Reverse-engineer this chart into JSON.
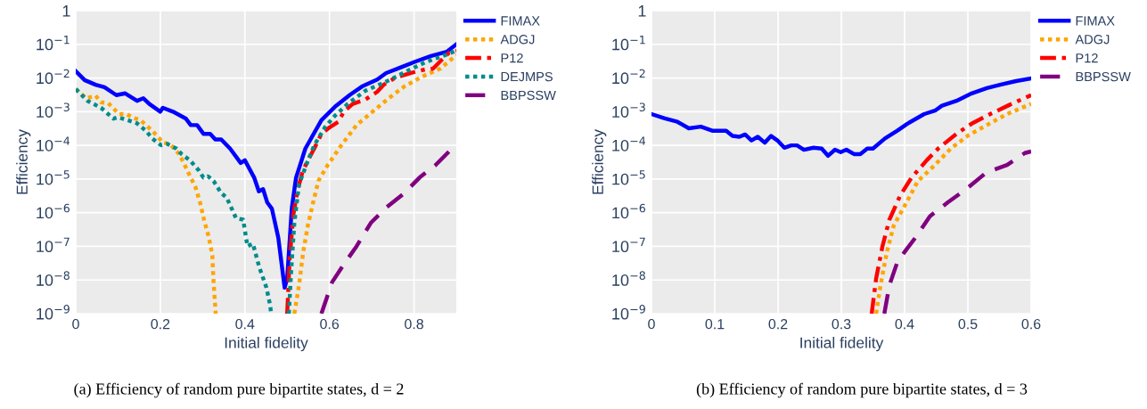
{
  "chart_data": [
    {
      "type": "line",
      "xlabel": "Initial fidelity",
      "ylabel": "Efficiency",
      "log": "y",
      "grid": true,
      "legend": "top right",
      "xlim": [
        0,
        0.9
      ],
      "xticks": [
        0,
        0.2,
        0.4,
        0.6,
        0.8
      ],
      "ylim": [
        1e-09,
        1
      ],
      "yticks": [
        {
          "value": 1e-09,
          "label": "10$^{−9}$"
        },
        {
          "value": 1e-08,
          "label": "10$^{−8}$"
        },
        {
          "value": 1e-07,
          "label": "10$^{−7}$"
        },
        {
          "value": 1e-06,
          "label": "10$^{−6}$"
        },
        {
          "value": 1e-05,
          "label": "10$^{−5}$"
        },
        {
          "value": 0.0001,
          "label": "10$^{−4}$"
        },
        {
          "value": 0.001,
          "label": "10$^{−3}$"
        },
        {
          "value": 0.01,
          "label": "10$^{−2}$"
        },
        {
          "value": 0.1,
          "label": "10$^{−1}$"
        },
        {
          "value": 1,
          "label": "1"
        }
      ],
      "annotations": [
        "(a) Efficiency of random pure bipartite states, d = 2"
      ],
      "series": [
        {
          "name": "FIMAX",
          "color": "#0000ff",
          "line_style": "solid",
          "x": [
            0,
            0.021,
            0.047,
            0.068,
            0.096,
            0.117,
            0.145,
            0.16,
            0.174,
            0.2,
            0.206,
            0.23,
            0.26,
            0.272,
            0.287,
            0.302,
            0.318,
            0.33,
            0.344,
            0.365,
            0.39,
            0.4,
            0.422,
            0.433,
            0.443,
            0.453,
            0.464,
            0.479,
            0.494,
            0.5,
            0.511,
            0.521,
            0.543,
            0.581,
            0.613,
            0.649,
            0.677,
            0.713,
            0.734,
            0.77,
            0.804,
            0.84,
            0.877,
            0.9
          ],
          "values": [
            0.016,
            0.0087,
            0.0063,
            0.0053,
            0.0031,
            0.0035,
            0.0021,
            0.0025,
            0.0017,
            0.001,
            0.0013,
            0.001,
            0.00063,
            0.0004,
            0.0004,
            0.00022,
            0.00022,
            0.00015,
            0.00015,
            8e-05,
            3e-05,
            3.6e-05,
            1.1e-05,
            4.3e-06,
            5e-06,
            2e-06,
            1.3e-06,
            1.8e-07,
            5.9e-09,
            1.1e-08,
            1.4e-06,
            1.1e-05,
            8e-05,
            0.00056,
            0.0014,
            0.0032,
            0.0056,
            0.009,
            0.014,
            0.021,
            0.031,
            0.045,
            0.06,
            0.1
          ]
        },
        {
          "name": "ADGJ",
          "color": "#ffa500",
          "line_style": "dotted",
          "x": [
            0,
            0.025,
            0.047,
            0.06,
            0.077,
            0.102,
            0.12,
            0.134,
            0.153,
            0.166,
            0.181,
            0.191,
            0.206,
            0.223,
            0.245,
            0.262,
            0.272,
            0.283,
            0.294,
            0.304,
            0.315,
            0.323,
            0.326,
            0.331,
            0.42,
            0.517,
            0.528,
            0.538,
            0.549,
            0.56,
            0.574,
            0.596,
            0.628,
            0.664,
            0.706,
            0.74,
            0.777,
            0.819,
            0.862,
            0.9
          ],
          "values": [
            0.0047,
            0.0025,
            0.003,
            0.0019,
            0.0018,
            0.00085,
            0.00085,
            0.00067,
            0.00056,
            0.0004,
            0.00027,
            0.0002,
            0.00012,
            0.00011,
            5.4e-05,
            2e-05,
            1.1e-05,
            5.8e-06,
            2e-06,
            5.7e-07,
            1.8e-07,
            5.4e-08,
            8.5e-09,
            1e-09,
            null,
            1e-09,
            7e-09,
            6.8e-08,
            4.2e-07,
            1.7e-06,
            8.9e-06,
            2.6e-05,
            0.0001,
            0.0004,
            0.0011,
            0.0025,
            0.0056,
            0.011,
            0.019,
            0.048
          ]
        },
        {
          "name": "P12",
          "color": "#ff0000",
          "line_style": "dashdot",
          "x": [
            0.5,
            0.506,
            0.515,
            0.525,
            0.536,
            0.547,
            0.564,
            0.581,
            0.6,
            0.621,
            0.634,
            0.655,
            0.685,
            0.713,
            0.728,
            0.755,
            0.791,
            0.826,
            0.845,
            0.866,
            0.883,
            0.9
          ],
          "values": [
            1e-09,
            4.5e-08,
            9.3e-07,
            4.8e-06,
            1.6e-05,
            3.2e-05,
            8e-05,
            0.00022,
            0.00034,
            0.0005,
            0.001,
            0.0017,
            0.0023,
            0.0039,
            0.0063,
            0.01,
            0.014,
            0.018,
            0.019,
            0.035,
            0.057,
            0.065
          ]
        },
        {
          "name": "DEJMPS",
          "color": "#008b8b",
          "line_style": "dotted",
          "x": [
            0,
            0.028,
            0.06,
            0.089,
            0.1,
            0.123,
            0.145,
            0.166,
            0.181,
            0.202,
            0.217,
            0.238,
            0.251,
            0.27,
            0.291,
            0.302,
            0.313,
            0.326,
            0.344,
            0.357,
            0.379,
            0.396,
            0.406,
            0.419,
            0.434,
            0.451,
            0.46,
            0.462,
            0.48,
            0.504,
            0.51,
            0.517,
            0.528,
            0.547,
            0.564,
            0.589,
            0.613,
            0.643,
            0.685,
            0.728,
            0.755,
            0.791,
            0.826,
            0.868,
            0.9
          ],
          "values": [
            0.0047,
            0.0021,
            0.0013,
            0.00062,
            0.00068,
            0.00056,
            0.00045,
            0.00027,
            0.00016,
            0.0001,
            0.00011,
            8e-05,
            5.4e-05,
            3.6e-05,
            1.8e-05,
            1.1e-05,
            1.2e-05,
            8.7e-06,
            3.8e-06,
            2.8e-06,
            6.9e-07,
            6.2e-07,
            1e-07,
            1.2e-07,
            2.4e-08,
            5.9e-09,
            1.7e-09,
            1e-09,
            null,
            1e-09,
            2.4e-08,
            5e-07,
            6.9e-06,
            3e-05,
            0.0001,
            0.00034,
            0.00076,
            0.0017,
            0.0042,
            0.0072,
            0.0105,
            0.018,
            0.029,
            0.045,
            0.065
          ]
        },
        {
          "name": "BBPSSW",
          "color": "#800080",
          "line_style": "dashed",
          "x": [
            0.581,
            0.606,
            0.634,
            0.664,
            0.698,
            0.734,
            0.777,
            0.813,
            0.851,
            0.883,
            0.9
          ],
          "values": [
            1e-09,
            8.5e-09,
            2.9e-08,
            1e-07,
            5e-07,
            1.4e-06,
            3.8e-06,
            1.1e-05,
            2.6e-05,
            6.6e-05,
            8e-05
          ]
        }
      ]
    },
    {
      "type": "line",
      "xlabel": "Initial fidelity",
      "ylabel": "Efficiency",
      "log": "y",
      "grid": true,
      "legend": "top right",
      "xlim": [
        0,
        0.6
      ],
      "xticks": [
        0,
        0.1,
        0.2,
        0.3,
        0.4,
        0.5,
        0.6
      ],
      "ylim": [
        1e-09,
        1
      ],
      "yticks": [
        {
          "value": 1e-09,
          "label": "10$^{−9}$"
        },
        {
          "value": 1e-08,
          "label": "10$^{−8}$"
        },
        {
          "value": 1e-07,
          "label": "10$^{−7}$"
        },
        {
          "value": 1e-06,
          "label": "10$^{−6}$"
        },
        {
          "value": 1e-05,
          "label": "10$^{−5}$"
        },
        {
          "value": 0.0001,
          "label": "10$^{−4}$"
        },
        {
          "value": 0.001,
          "label": "10$^{−3}$"
        },
        {
          "value": 0.01,
          "label": "10$^{−2}$"
        },
        {
          "value": 0.1,
          "label": "10$^{−1}$"
        },
        {
          "value": 1,
          "label": "1"
        }
      ],
      "annotations": [
        "(b) Efficiency of random pure bipartite states, d = 3"
      ],
      "series": [
        {
          "name": "FIMAX",
          "color": "#0000ff",
          "line_style": "solid",
          "x": [
            0,
            0.021,
            0.041,
            0.059,
            0.078,
            0.097,
            0.118,
            0.128,
            0.139,
            0.148,
            0.158,
            0.168,
            0.179,
            0.189,
            0.199,
            0.21,
            0.221,
            0.23,
            0.241,
            0.256,
            0.269,
            0.279,
            0.29,
            0.299,
            0.308,
            0.32,
            0.33,
            0.341,
            0.35,
            0.369,
            0.388,
            0.407,
            0.431,
            0.449,
            0.459,
            0.482,
            0.506,
            0.53,
            0.551,
            0.576,
            0.6
          ],
          "values": [
            0.00085,
            0.00063,
            0.0005,
            0.00032,
            0.00036,
            0.00027,
            0.00027,
            0.00019,
            0.00018,
            0.00021,
            0.00014,
            0.00018,
            0.00012,
            0.00019,
            0.00014,
            8.5e-05,
            0.0001,
            0.0001,
            7.4e-05,
            8.5e-05,
            8e-05,
            4.9e-05,
            7.4e-05,
            6.3e-05,
            7.4e-05,
            5.5e-05,
            5.5e-05,
            8e-05,
            8e-05,
            0.00016,
            0.00027,
            0.00047,
            0.00085,
            0.0011,
            0.0015,
            0.0021,
            0.0035,
            0.005,
            0.0063,
            0.0081,
            0.0098
          ]
        },
        {
          "name": "ADGJ",
          "color": "#ffa500",
          "line_style": "dotted",
          "x": [
            0.355,
            0.362,
            0.372,
            0.383,
            0.403,
            0.421,
            0.445,
            0.473,
            0.501,
            0.53,
            0.562,
            0.6
          ],
          "values": [
            1e-09,
            7e-09,
            6.8e-08,
            4.2e-07,
            2e-06,
            8.7e-06,
            2.3e-05,
            8e-05,
            0.0002,
            0.0004,
            0.00085,
            0.0017
          ]
        },
        {
          "name": "P12",
          "color": "#ff0000",
          "line_style": "dashdot",
          "x": [
            0.348,
            0.355,
            0.365,
            0.376,
            0.393,
            0.411,
            0.435,
            0.453,
            0.482,
            0.506,
            0.538,
            0.566,
            0.6
          ],
          "values": [
            1e-09,
            1.1e-08,
            1e-07,
            6.2e-07,
            3.2e-06,
            1.1e-05,
            3.6e-05,
            8e-05,
            0.00022,
            0.00044,
            0.0009,
            0.0016,
            0.0031
          ]
        },
        {
          "name": "BBPSSW",
          "color": "#800080",
          "line_style": "dashed",
          "x": [
            0.368,
            0.376,
            0.389,
            0.403,
            0.417,
            0.44,
            0.468,
            0.496,
            0.53,
            0.562,
            0.59,
            0.6
          ],
          "values": [
            1e-09,
            7e-09,
            3.6e-08,
            8.1e-08,
            1.8e-07,
            7.8e-07,
            2e-06,
            4.8e-06,
            1.6e-05,
            2.6e-05,
            5.9e-05,
            6.6e-05
          ]
        }
      ]
    }
  ]
}
